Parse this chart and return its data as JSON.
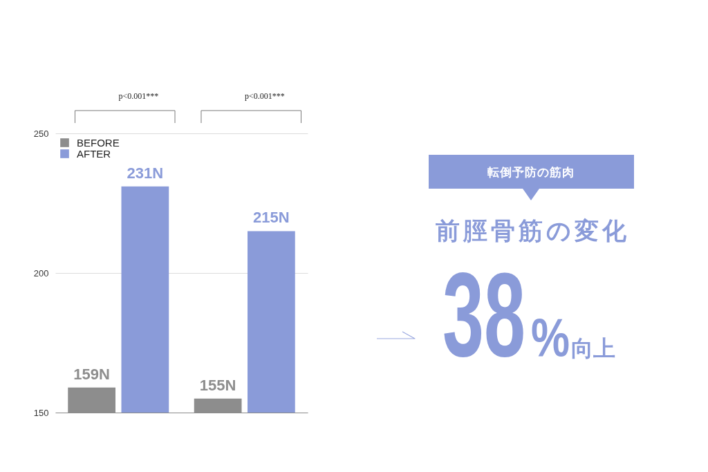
{
  "chart_data": [
    {
      "type": "bar",
      "categories": [
        null,
        null
      ],
      "series": [
        {
          "name": "BEFORE",
          "color": "#8d8d8d",
          "values": [
            159,
            155
          ],
          "value_labels": [
            "159N",
            "155N"
          ]
        },
        {
          "name": "AFTER",
          "color": "#8a9bd9",
          "values": [
            231,
            215
          ],
          "value_labels": [
            "231N",
            "215N"
          ]
        }
      ],
      "ylim": [
        150,
        250
      ],
      "yticks": [
        150,
        200,
        250
      ],
      "grid": "y",
      "legend": "top left",
      "annotations": [
        "p<0.001***",
        "p<0.001***"
      ]
    },
    {
      "type": "other",
      "subtitle": "転倒予防の筋肉",
      "title": "前脛骨筋の変化",
      "color": "#8a9bd9",
      "annotations": [
        "38%向上"
      ]
    }
  ]
}
